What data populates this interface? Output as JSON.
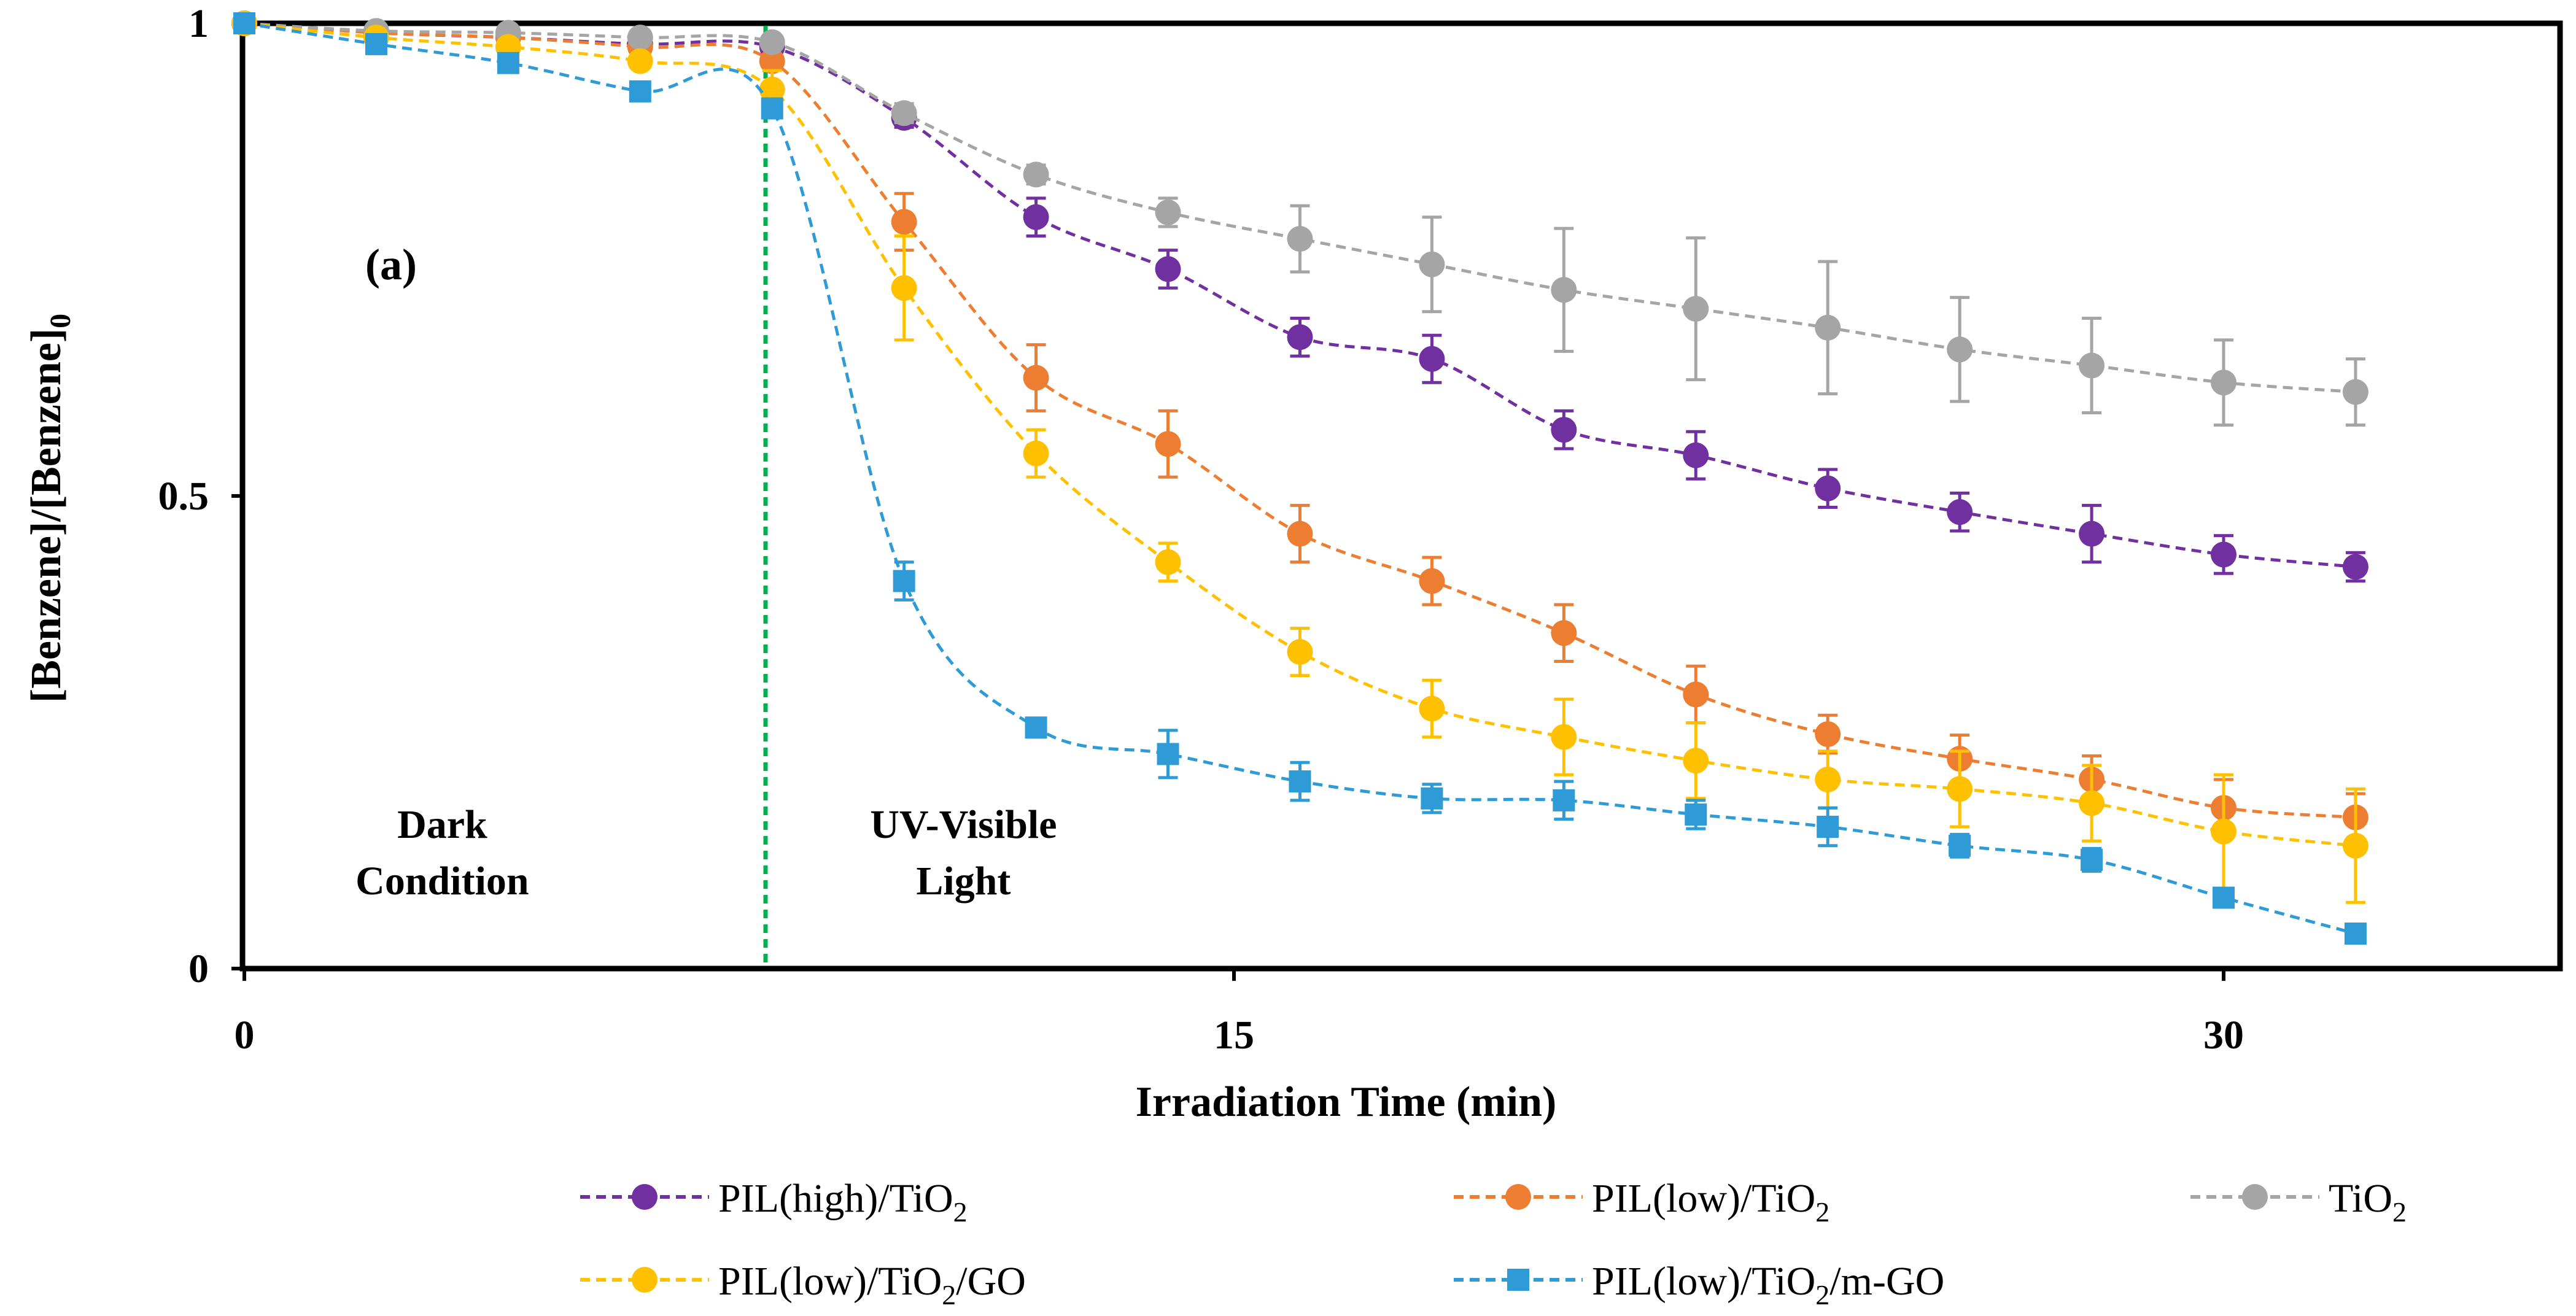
{
  "chart_data": {
    "type": "line",
    "panel_label": "(a)",
    "xlabel": "Irradiation Time (min)",
    "ylabel_main": "[Benzene]/[Benzene]",
    "ylabel_sub": "0",
    "xlim": [
      0,
      35
    ],
    "ylim": [
      0,
      1
    ],
    "xticks": [
      0,
      15,
      30
    ],
    "xtick_labels": [
      "0",
      "15",
      "30"
    ],
    "yticks": [
      0,
      0.5,
      1
    ],
    "ytick_labels": [
      "0",
      "0.5",
      "1"
    ],
    "grid": false,
    "divider": {
      "x": 7.9,
      "color": "#00b050",
      "style": "dashed"
    },
    "region_labels": [
      {
        "name": "dark",
        "lines": [
          "Dark",
          "Condition"
        ],
        "x": 3.0,
        "y": 0.08
      },
      {
        "name": "uv",
        "lines": [
          "UV-Visible",
          "Light"
        ],
        "x": 10.9,
        "y": 0.08
      }
    ],
    "x": [
      0,
      2,
      4,
      6,
      8,
      10,
      12,
      14,
      16,
      18,
      20,
      22,
      24,
      26,
      28,
      30,
      32
    ],
    "series": [
      {
        "name": "PIL(high)/TiO2",
        "label_main": "PIL(high)/TiO",
        "label_sub": "2",
        "label_tail": "",
        "color": "#7030a0",
        "marker": "circle",
        "values": [
          1.0,
          0.99,
          0.985,
          0.978,
          0.975,
          0.9,
          0.795,
          0.74,
          0.668,
          0.645,
          0.57,
          0.543,
          0.508,
          0.483,
          0.46,
          0.438,
          0.425
        ],
        "errors": [
          0,
          0,
          0,
          0,
          0,
          0.01,
          0.02,
          0.02,
          0.02,
          0.025,
          0.02,
          0.025,
          0.02,
          0.02,
          0.03,
          0.02,
          0.015
        ]
      },
      {
        "name": "PIL(low)/TiO2",
        "label_main": "PIL(low)/TiO",
        "label_sub": "2",
        "label_tail": "",
        "color": "#ed7d31",
        "marker": "circle",
        "values": [
          1.0,
          0.99,
          0.985,
          0.975,
          0.96,
          0.79,
          0.625,
          0.555,
          0.46,
          0.41,
          0.355,
          0.29,
          0.248,
          0.222,
          0.2,
          0.17,
          0.16
        ],
        "errors": [
          0,
          0,
          0,
          0,
          0,
          0.03,
          0.035,
          0.035,
          0.03,
          0.025,
          0.03,
          0.03,
          0.02,
          0.025,
          0.025,
          0.03,
          0.025
        ]
      },
      {
        "name": "TiO2",
        "label_main": "TiO",
        "label_sub": "2",
        "label_tail": "",
        "color": "#a5a5a5",
        "marker": "circle",
        "values": [
          1.0,
          0.992,
          0.99,
          0.985,
          0.98,
          0.905,
          0.84,
          0.8,
          0.772,
          0.745,
          0.718,
          0.698,
          0.678,
          0.655,
          0.638,
          0.62,
          0.61
        ],
        "errors": [
          0,
          0,
          0,
          0,
          0,
          0.01,
          0.01,
          0.015,
          0.035,
          0.05,
          0.065,
          0.075,
          0.07,
          0.055,
          0.05,
          0.045,
          0.035
        ]
      },
      {
        "name": "PIL(low)/TiO2/GO",
        "label_main": "PIL(low)/TiO",
        "label_sub": "2",
        "label_tail": "/GO",
        "color": "#ffc000",
        "marker": "circle",
        "values": [
          1.0,
          0.985,
          0.975,
          0.96,
          0.93,
          0.72,
          0.545,
          0.43,
          0.335,
          0.275,
          0.245,
          0.22,
          0.2,
          0.19,
          0.175,
          0.145,
          0.13
        ],
        "errors": [
          0,
          0,
          0,
          0,
          0.02,
          0.055,
          0.025,
          0.02,
          0.025,
          0.03,
          0.04,
          0.04,
          0.03,
          0.04,
          0.04,
          0.06,
          0.06
        ]
      },
      {
        "name": "PIL(low)/TiO2/m-GO",
        "label_main": "PIL(low)/TiO",
        "label_sub": "2",
        "label_tail": "/m-GO",
        "color": "#2e9bd6",
        "marker": "square",
        "values": [
          1.0,
          0.978,
          0.958,
          0.928,
          0.91,
          0.41,
          0.255,
          0.227,
          0.198,
          0.18,
          0.178,
          0.163,
          0.15,
          0.13,
          0.115,
          0.075,
          0.037
        ],
        "errors": [
          0,
          0,
          0,
          0,
          0,
          0.02,
          0.01,
          0.025,
          0.02,
          0.015,
          0.02,
          0.015,
          0.02,
          0.012,
          0.012,
          0.01,
          0.01
        ]
      }
    ]
  }
}
